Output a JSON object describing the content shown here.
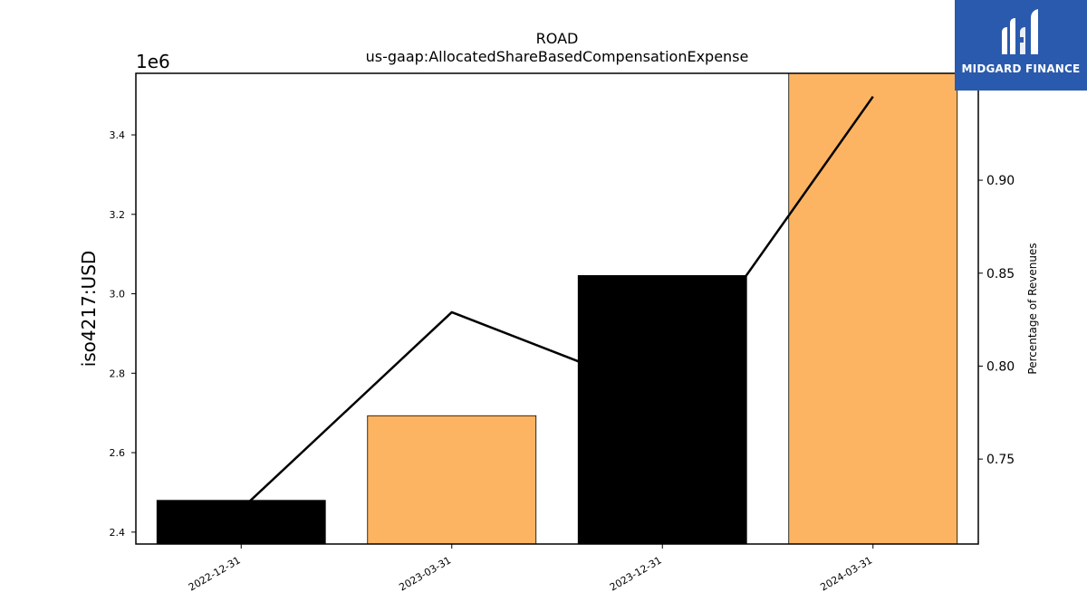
{
  "chart_data": {
    "type": "bar",
    "title": "ROAD",
    "subtitle": "us-gaap:AllocatedShareBasedCompensationExpense",
    "ylabel": "iso4217:USD",
    "y2label": "Percentage of Revenues",
    "y_multiplier": "1e6",
    "categories": [
      "2022-12-31",
      "2023-03-31",
      "2023-12-31",
      "2024-03-31"
    ],
    "values": [
      2480000,
      2693000,
      3046000,
      3560000
    ],
    "bar_colors": [
      "#000000",
      "#fdb462",
      "#000000",
      "#fdb462"
    ],
    "ylim": [
      2370000,
      3555000
    ],
    "yticks": [
      2400000,
      2600000,
      2800000,
      3000000,
      3200000,
      3400000
    ],
    "ytick_labels": [
      "2.4",
      "2.6",
      "2.8",
      "3.0",
      "3.2",
      "3.4"
    ],
    "line": {
      "values": [
        0.723,
        0.829,
        0.785,
        0.945
      ],
      "color": "#000000"
    },
    "y2lim": [
      0.7043,
      0.9575
    ],
    "y2ticks": [
      0.75,
      0.8,
      0.85,
      0.9
    ],
    "y2tick_labels": [
      "0.75",
      "0.80",
      "0.85",
      "0.90"
    ],
    "grid": false,
    "legend": "none"
  },
  "logo": {
    "text": "MIDGARD FINANCE",
    "bg_color": "#2a5aad"
  }
}
